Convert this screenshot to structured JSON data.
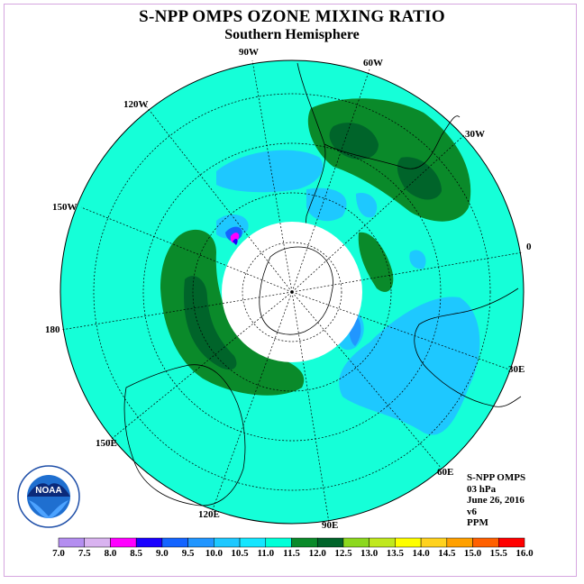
{
  "title": "S-NPP OMPS OZONE MIXING RATIO",
  "subtitle": "Southern Hemisphere",
  "longitude_labels": {
    "w90": "90W",
    "w60": "60W",
    "w30": "30W",
    "e0": "0",
    "e30": "30E",
    "e60": "60E",
    "e90": "90E",
    "e120": "120E",
    "e150": "150E",
    "d180": "180",
    "w150": "150W",
    "w120": "120W"
  },
  "info": {
    "instrument": "S-NPP OMPS",
    "level": "03 hPa",
    "date": "June 26, 2016",
    "version": "v6",
    "units": "PPM"
  },
  "logo": {
    "text": "NOAA"
  },
  "colorbar": {
    "labels": [
      "7.0",
      "7.5",
      "8.0",
      "8.5",
      "9.0",
      "9.5",
      "10.0",
      "10.5",
      "11.0",
      "11.5",
      "12.0",
      "12.5",
      "13.0",
      "13.5",
      "14.0",
      "14.5",
      "15.0",
      "15.5",
      "16.0"
    ],
    "colors": [
      "#b48ef0",
      "#d9b3f0",
      "#ff00ff",
      "#1a00ff",
      "#1464ff",
      "#2196ff",
      "#1ec8ff",
      "#15e6ff",
      "#00ffd8",
      "#0a8a2a",
      "#00642a",
      "#8cd81e",
      "#c0e81e",
      "#ffff00",
      "#ffd21e",
      "#ffa000",
      "#ff6000",
      "#ff0000",
      "#8b5a3c"
    ]
  }
}
